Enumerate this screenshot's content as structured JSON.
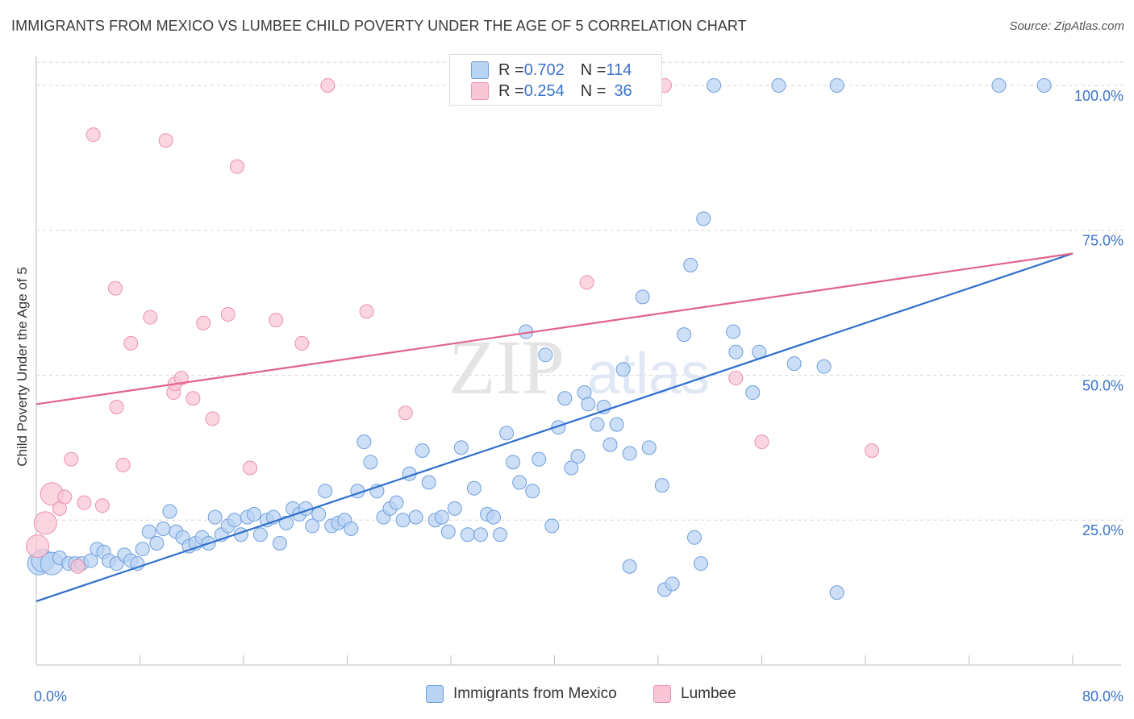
{
  "title": "IMMIGRANTS FROM MEXICO VS LUMBEE CHILD POVERTY UNDER THE AGE OF 5 CORRELATION CHART",
  "source": "Source: ZipAtlas.com",
  "watermark": {
    "zip": "ZIP",
    "atlas": "atlas"
  },
  "legend": {
    "rows": [
      {
        "r_label": "R = ",
        "r_value": "0.702",
        "n_label": "N = ",
        "n_value": "114"
      },
      {
        "r_label": "R = ",
        "r_value": "0.254",
        "n_label": "N = ",
        "n_value": "36"
      }
    ]
  },
  "bottom_legend": {
    "mexico": "Immigrants from Mexico",
    "lumbee": "Lumbee"
  },
  "colors": {
    "blue_fill": "#b9d3f3",
    "blue_stroke": "#6f9fdd",
    "blue_line": "#2f6fcd",
    "pink_fill": "#f9c6d6",
    "pink_stroke": "#ec90ad",
    "pink_line": "#e0628e",
    "tick_label": "#3b73c8",
    "grid": "#d6d6d6"
  },
  "chart_data": {
    "type": "scatter",
    "title": "IMMIGRANTS FROM MEXICO VS LUMBEE CHILD POVERTY UNDER THE AGE OF 5 CORRELATION CHART",
    "xlabel": "",
    "ylabel": "Child Poverty Under the Age of 5",
    "xlim": [
      0,
      80
    ],
    "ylim": [
      0,
      105
    ],
    "x_tick_labels": [
      {
        "value": 0,
        "label": "0.0%"
      },
      {
        "value": 80,
        "label": "80.0%"
      }
    ],
    "y_tick_labels": [
      {
        "value": 25,
        "label": "25.0%"
      },
      {
        "value": 50,
        "label": "50.0%"
      },
      {
        "value": 75,
        "label": "75.0%"
      },
      {
        "value": 100,
        "label": "100.0%"
      }
    ],
    "series": [
      {
        "name": "Immigrants from Mexico",
        "r": 0.702,
        "n": 114,
        "trend": [
          [
            0,
            11
          ],
          [
            80,
            71
          ]
        ],
        "points": [
          [
            0.2,
            17.5
          ],
          [
            0.5,
            18
          ],
          [
            1.2,
            17.5
          ],
          [
            1.8,
            18.5
          ],
          [
            2.5,
            17.5
          ],
          [
            3,
            17.5
          ],
          [
            3.5,
            17.5
          ],
          [
            4.2,
            18
          ],
          [
            4.7,
            20
          ],
          [
            5.2,
            19.5
          ],
          [
            5.6,
            18
          ],
          [
            6.2,
            17.5
          ],
          [
            6.8,
            19
          ],
          [
            7.3,
            18
          ],
          [
            7.8,
            17.5
          ],
          [
            8.2,
            20
          ],
          [
            8.7,
            23
          ],
          [
            9.3,
            21
          ],
          [
            9.8,
            23.5
          ],
          [
            10.3,
            26.5
          ],
          [
            10.8,
            23
          ],
          [
            11.3,
            22
          ],
          [
            11.8,
            20.5
          ],
          [
            12.3,
            21
          ],
          [
            12.8,
            22
          ],
          [
            13.3,
            21
          ],
          [
            13.8,
            25.5
          ],
          [
            14.3,
            22.5
          ],
          [
            14.8,
            24
          ],
          [
            15.3,
            25
          ],
          [
            15.8,
            22.5
          ],
          [
            16.3,
            25.5
          ],
          [
            16.8,
            26
          ],
          [
            17.3,
            22.5
          ],
          [
            17.8,
            25
          ],
          [
            18.3,
            25.5
          ],
          [
            18.8,
            21
          ],
          [
            19.3,
            24.5
          ],
          [
            19.8,
            27
          ],
          [
            20.3,
            26
          ],
          [
            20.8,
            27
          ],
          [
            21.3,
            24
          ],
          [
            21.8,
            26
          ],
          [
            22.3,
            30
          ],
          [
            22.8,
            24
          ],
          [
            23.3,
            24.5
          ],
          [
            23.8,
            25
          ],
          [
            24.3,
            23.5
          ],
          [
            24.8,
            30
          ],
          [
            25.3,
            38.5
          ],
          [
            25.8,
            35
          ],
          [
            26.3,
            30
          ],
          [
            26.8,
            25.5
          ],
          [
            27.3,
            27
          ],
          [
            27.8,
            28
          ],
          [
            28.3,
            25
          ],
          [
            28.8,
            33
          ],
          [
            29.3,
            25.5
          ],
          [
            29.8,
            37
          ],
          [
            30.3,
            31.5
          ],
          [
            30.8,
            25
          ],
          [
            31.3,
            25.5
          ],
          [
            31.8,
            23
          ],
          [
            32.3,
            27
          ],
          [
            32.8,
            37.5
          ],
          [
            33.3,
            22.5
          ],
          [
            33.8,
            30.5
          ],
          [
            34.3,
            22.5
          ],
          [
            34.8,
            26
          ],
          [
            35.3,
            25.5
          ],
          [
            35.8,
            22.5
          ],
          [
            36.3,
            40
          ],
          [
            36.8,
            35
          ],
          [
            37.3,
            31.5
          ],
          [
            37.8,
            57.5
          ],
          [
            38.3,
            30
          ],
          [
            38.8,
            35.5
          ],
          [
            39.3,
            53.5
          ],
          [
            39.8,
            24
          ],
          [
            40.3,
            41
          ],
          [
            40.8,
            46
          ],
          [
            41.3,
            34
          ],
          [
            41.8,
            36
          ],
          [
            42.3,
            47
          ],
          [
            42.6,
            45
          ],
          [
            43.3,
            41.5
          ],
          [
            43.8,
            44.5
          ],
          [
            44.3,
            38
          ],
          [
            44.8,
            41.5
          ],
          [
            45.3,
            51
          ],
          [
            45.8,
            36.5
          ],
          [
            45.8,
            17
          ],
          [
            46.8,
            63.5
          ],
          [
            47.3,
            37.5
          ],
          [
            48.3,
            31
          ],
          [
            48.5,
            13
          ],
          [
            49.1,
            14
          ],
          [
            50.0,
            57
          ],
          [
            50.5,
            69
          ],
          [
            50.8,
            22
          ],
          [
            51.3,
            17.5
          ],
          [
            51.5,
            77
          ],
          [
            52.3,
            100
          ],
          [
            53.8,
            57.5
          ],
          [
            54.0,
            54
          ],
          [
            55.3,
            47
          ],
          [
            55.8,
            54
          ],
          [
            57.3,
            100
          ],
          [
            58.5,
            52
          ],
          [
            60.8,
            51.5
          ],
          [
            61.8,
            100
          ],
          [
            61.8,
            12.5
          ],
          [
            74.3,
            100
          ],
          [
            77.8,
            100
          ]
        ]
      },
      {
        "name": "Lumbee",
        "r": 0.254,
        "n": 36,
        "trend": [
          [
            0,
            45
          ],
          [
            80,
            71
          ]
        ],
        "points": [
          [
            0.1,
            20.5
          ],
          [
            0.7,
            24.5
          ],
          [
            1.2,
            29.5
          ],
          [
            1.8,
            27
          ],
          [
            2.2,
            29
          ],
          [
            2.7,
            35.5
          ],
          [
            3.2,
            17
          ],
          [
            3.7,
            28
          ],
          [
            4.4,
            91.5
          ],
          [
            5.1,
            27.5
          ],
          [
            6.1,
            65
          ],
          [
            6.2,
            44.5
          ],
          [
            6.7,
            34.5
          ],
          [
            7.3,
            55.5
          ],
          [
            8.8,
            60
          ],
          [
            10.0,
            90.5
          ],
          [
            10.6,
            47
          ],
          [
            10.7,
            48.5
          ],
          [
            11.2,
            49.5
          ],
          [
            12.1,
            46
          ],
          [
            12.9,
            59
          ],
          [
            13.6,
            42.5
          ],
          [
            14.8,
            60.5
          ],
          [
            15.5,
            86
          ],
          [
            16.5,
            34
          ],
          [
            18.5,
            59.5
          ],
          [
            20.5,
            55.5
          ],
          [
            22.5,
            100
          ],
          [
            25.5,
            61
          ],
          [
            28.5,
            43.5
          ],
          [
            42.5,
            66
          ],
          [
            48.5,
            100
          ],
          [
            54.0,
            49.5
          ],
          [
            56.0,
            38.5
          ],
          [
            64.5,
            37
          ]
        ]
      }
    ]
  }
}
